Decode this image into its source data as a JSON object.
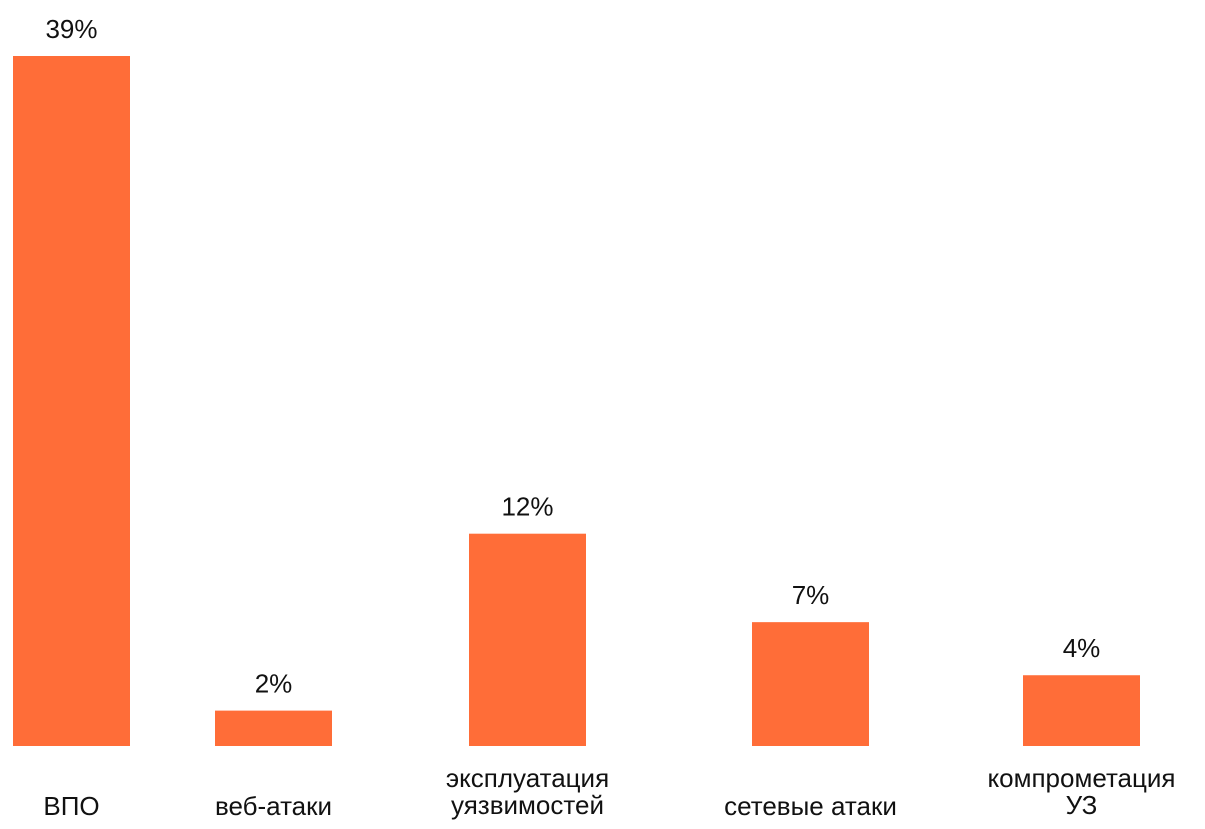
{
  "chart_data": {
    "type": "bar",
    "categories": [
      [
        "ВПО"
      ],
      [
        "веб-атаки"
      ],
      [
        "эксплуатация",
        "уязвимостей"
      ],
      [
        "сетевые атаки"
      ],
      [
        "компрометация",
        "УЗ"
      ]
    ],
    "values": [
      39,
      2,
      12,
      7,
      4
    ],
    "value_labels": [
      "39%",
      "2%",
      "12%",
      "7%",
      "4%"
    ],
    "bar_color": "#ff6d38",
    "grid": false,
    "legend": "none"
  }
}
